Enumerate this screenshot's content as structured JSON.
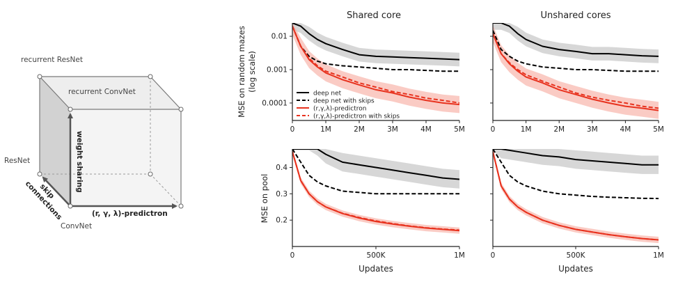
{
  "cube": {
    "labels": {
      "recurrent_resnet": "recurrent ResNet",
      "recurrent_convnet": "recurrent ConvNet",
      "resnet": "ResNet",
      "convnet": "ConvNet",
      "weight_sharing": "weight sharing",
      "skip": "skip",
      "connections": "connections",
      "predictron": "(r, γ, λ)-predictron"
    },
    "colors": {
      "left_face": "#d2d2d2",
      "top_face": "#eeeeee",
      "front_face": "#f4f4f4",
      "edge": "#7a7a7a",
      "arrow": "#555555"
    }
  },
  "columns": {
    "left": "Shared core",
    "right": "Unshared cores"
  },
  "rows": {
    "top_ylabel_1": "MSE on random mazes",
    "top_ylabel_2": "(log scale)",
    "bottom_ylabel": "MSE on pool"
  },
  "legend": [
    {
      "label": "deep net",
      "color": "#000000",
      "dash": false
    },
    {
      "label": "deep net with skips",
      "color": "#000000",
      "dash": true
    },
    {
      "label": "(r,γ,λ)-predictron",
      "color": "#e8321e",
      "dash": false
    },
    {
      "label": "(r,γ,λ)-predictron with skips",
      "color": "#e8321e",
      "dash": true
    }
  ],
  "colors": {
    "black_series": "#000000",
    "red_series": "#e8321e",
    "black_band": "#bdbdbd",
    "red_band": "#f6a99c"
  },
  "chart_data": [
    {
      "type": "line",
      "panel": "top-left",
      "title": "Shared core",
      "ylabel": "MSE on random mazes (log scale)",
      "xlabel": "",
      "yscale": "log",
      "xlim": [
        0,
        5000000
      ],
      "ylim": [
        3e-05,
        0.025
      ],
      "xticks": [
        0,
        1000000,
        2000000,
        3000000,
        4000000,
        5000000
      ],
      "xticklabels": [
        "0",
        "1M",
        "2M",
        "3M",
        "4M",
        "5M"
      ],
      "yticks": [
        0.0001,
        0.001,
        0.01
      ],
      "yticklabels": [
        "0.0001",
        "0.001",
        "0.01"
      ],
      "legend_position": "bottom-left",
      "x": [
        0,
        250000,
        500000,
        750000,
        1000000,
        1500000,
        2000000,
        2500000,
        3000000,
        3500000,
        4000000,
        4500000,
        5000000
      ],
      "series": [
        {
          "name": "deep net",
          "values": [
            0.025,
            0.02,
            0.012,
            0.008,
            0.006,
            0.004,
            0.0028,
            0.0025,
            0.0024,
            0.0023,
            0.0022,
            0.0021,
            0.002
          ]
        },
        {
          "name": "deep net with skips",
          "values": [
            0.02,
            0.005,
            0.0025,
            0.0018,
            0.0015,
            0.0013,
            0.0012,
            0.0011,
            0.001,
            0.001,
            0.00095,
            0.0009,
            0.0009
          ]
        },
        {
          "name": "(r,γ,λ)-predictron",
          "values": [
            0.02,
            0.005,
            0.002,
            0.0012,
            0.0008,
            0.0005,
            0.00035,
            0.00025,
            0.0002,
            0.00015,
            0.00012,
            0.0001,
            9e-05
          ]
        },
        {
          "name": "(r,γ,λ)-predictron with skips",
          "values": [
            0.02,
            0.005,
            0.0022,
            0.0013,
            0.0009,
            0.0006,
            0.0004,
            0.0003,
            0.00022,
            0.00018,
            0.00014,
            0.00012,
            0.0001
          ]
        }
      ]
    },
    {
      "type": "line",
      "panel": "top-right",
      "title": "Unshared cores",
      "ylabel": "",
      "xlabel": "",
      "yscale": "log",
      "xlim": [
        0,
        5000000
      ],
      "ylim": [
        3e-05,
        0.025
      ],
      "xticks": [
        0,
        1000000,
        2000000,
        3000000,
        4000000,
        5000000
      ],
      "xticklabels": [
        "0",
        "1M",
        "2M",
        "3M",
        "4M",
        "5M"
      ],
      "yticks": [
        0.0001,
        0.001,
        0.01
      ],
      "yticklabels": [],
      "x": [
        0,
        250000,
        500000,
        750000,
        1000000,
        1500000,
        2000000,
        2500000,
        3000000,
        3500000,
        4000000,
        4500000,
        5000000
      ],
      "series": [
        {
          "name": "deep net",
          "values": [
            0.025,
            0.025,
            0.02,
            0.012,
            0.008,
            0.005,
            0.004,
            0.0035,
            0.003,
            0.003,
            0.0028,
            0.0026,
            0.0025
          ]
        },
        {
          "name": "deep net with skips",
          "values": [
            0.015,
            0.004,
            0.0025,
            0.0018,
            0.0015,
            0.0012,
            0.0011,
            0.001,
            0.001,
            0.00095,
            0.0009,
            0.0009,
            0.0009
          ]
        },
        {
          "name": "(r,γ,λ)-predictron",
          "values": [
            0.012,
            0.003,
            0.0015,
            0.0009,
            0.0006,
            0.0004,
            0.00025,
            0.00018,
            0.00013,
            0.0001,
            8e-05,
            7e-05,
            6e-05
          ]
        },
        {
          "name": "(r,γ,λ)-predictron with skips",
          "values": [
            0.012,
            0.003,
            0.0016,
            0.001,
            0.0007,
            0.00045,
            0.0003,
            0.0002,
            0.00015,
            0.00012,
            0.0001,
            8e-05,
            7e-05
          ]
        }
      ]
    },
    {
      "type": "line",
      "panel": "bottom-left",
      "title": "",
      "ylabel": "MSE on pool",
      "xlabel": "Updates",
      "yscale": "linear",
      "xlim": [
        0,
        1000000
      ],
      "ylim": [
        0.1,
        0.47
      ],
      "xticks": [
        0,
        500000,
        1000000
      ],
      "xticklabels": [
        "0",
        "500K",
        "1M"
      ],
      "yticks": [
        0.2,
        0.3,
        0.4
      ],
      "yticklabels": [
        "0.2",
        "0.3",
        "0.4"
      ],
      "x": [
        0,
        50000,
        100000,
        150000,
        200000,
        300000,
        400000,
        500000,
        600000,
        700000,
        800000,
        900000,
        1000000
      ],
      "series": [
        {
          "name": "deep net",
          "values": [
            0.5,
            0.5,
            0.5,
            0.48,
            0.45,
            0.42,
            0.41,
            0.4,
            0.39,
            0.38,
            0.37,
            0.36,
            0.355
          ]
        },
        {
          "name": "deep net with skips",
          "values": [
            0.5,
            0.42,
            0.37,
            0.345,
            0.33,
            0.31,
            0.305,
            0.3,
            0.3,
            0.3,
            0.3,
            0.3,
            0.3
          ]
        },
        {
          "name": "(r,γ,λ)-predictron",
          "values": [
            0.46,
            0.35,
            0.3,
            0.27,
            0.25,
            0.225,
            0.208,
            0.195,
            0.185,
            0.177,
            0.17,
            0.165,
            0.16
          ]
        },
        {
          "name": "(r,γ,λ)-predictron with skips",
          "values": [
            0.46,
            0.35,
            0.3,
            0.27,
            0.25,
            0.226,
            0.21,
            0.197,
            0.187,
            0.178,
            0.171,
            0.166,
            0.162
          ]
        }
      ]
    },
    {
      "type": "line",
      "panel": "bottom-right",
      "title": "",
      "ylabel": "",
      "xlabel": "Updates",
      "yscale": "linear",
      "xlim": [
        0,
        1000000
      ],
      "ylim": [
        0.1,
        0.47
      ],
      "xticks": [
        0,
        500000,
        1000000
      ],
      "xticklabels": [
        "0",
        "500K",
        "1M"
      ],
      "yticks": [
        0.2,
        0.3,
        0.4
      ],
      "yticklabels": [],
      "x": [
        0,
        50000,
        100000,
        150000,
        200000,
        300000,
        400000,
        500000,
        600000,
        700000,
        800000,
        900000,
        1000000
      ],
      "series": [
        {
          "name": "deep net",
          "values": [
            0.5,
            0.47,
            0.465,
            0.46,
            0.455,
            0.445,
            0.44,
            0.43,
            0.425,
            0.42,
            0.415,
            0.41,
            0.41
          ]
        },
        {
          "name": "deep net with skips",
          "values": [
            0.5,
            0.42,
            0.37,
            0.345,
            0.33,
            0.31,
            0.3,
            0.295,
            0.29,
            0.287,
            0.285,
            0.283,
            0.282
          ]
        },
        {
          "name": "(r,γ,λ)-predictron",
          "values": [
            0.46,
            0.33,
            0.28,
            0.25,
            0.23,
            0.2,
            0.18,
            0.165,
            0.155,
            0.145,
            0.137,
            0.13,
            0.125
          ]
        },
        {
          "name": "(r,γ,λ)-predictron with skips",
          "values": [
            0.46,
            0.33,
            0.28,
            0.25,
            0.23,
            0.2,
            0.18,
            0.165,
            0.155,
            0.145,
            0.137,
            0.13,
            0.125
          ]
        }
      ]
    }
  ]
}
